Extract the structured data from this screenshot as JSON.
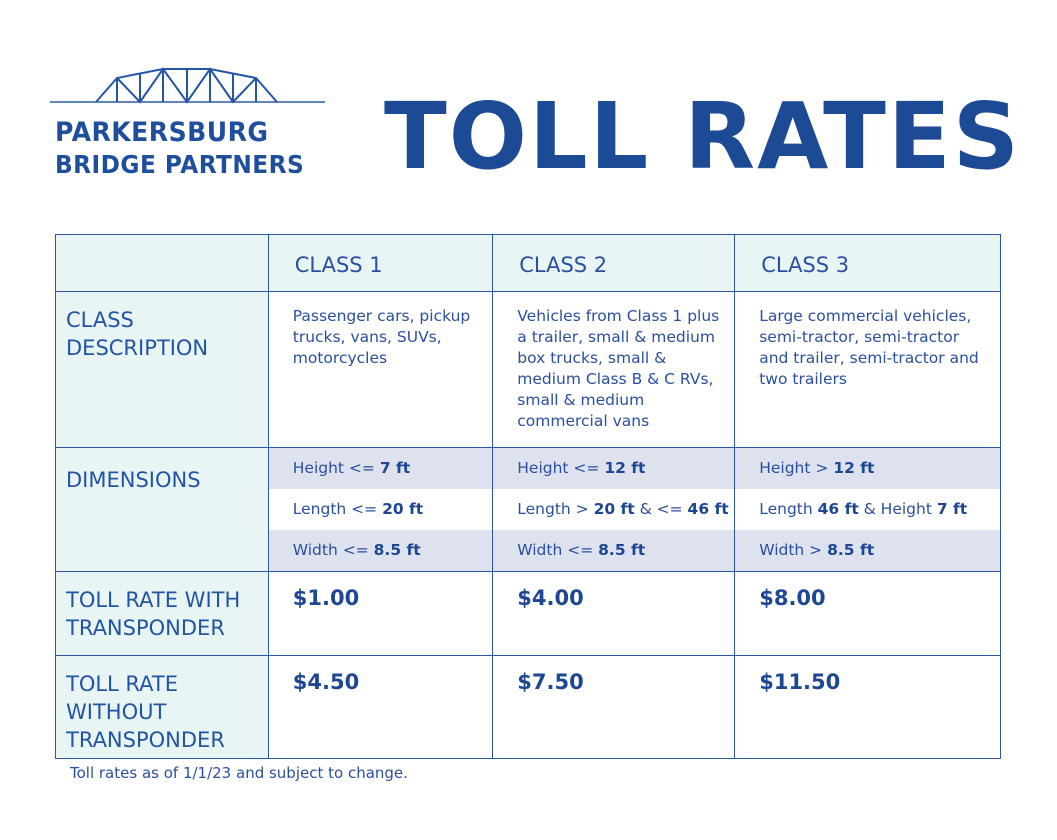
{
  "logo": {
    "line1": "PARKERSBURG",
    "line2": "BRIDGE PARTNERS"
  },
  "title": "TOLL RATES",
  "table": {
    "headers": [
      "CLASS 1",
      "CLASS 2",
      "CLASS 3"
    ],
    "rows": {
      "description": {
        "label": "CLASS DESCRIPTION",
        "values": [
          "Passenger cars, pickup trucks, vans, SUVs, motorcycles",
          "Vehicles from Class 1 plus a trailer, small & medium box trucks, small & medium Class B & C RVs, small & medium commercial vans",
          "Large commercial vehicles, semi-tractor, semi-tractor and trailer, semi-tractor and two trailers"
        ]
      },
      "dimensions": {
        "label": "DIMENSIONS",
        "values": [
          [
            {
              "pre": "Height <= ",
              "bold": "7 ft"
            },
            {
              "pre": "Length <= ",
              "bold": "20 ft"
            },
            {
              "pre": "Width <= ",
              "bold": "8.5 ft"
            }
          ],
          [
            {
              "pre": "Height <= ",
              "bold": "12 ft"
            },
            {
              "pre": "Length > ",
              "bold": "20 ft",
              "mid": " & <= ",
              "bold2": "46 ft"
            },
            {
              "pre": "Width <= ",
              "bold": "8.5 ft"
            }
          ],
          [
            {
              "pre": "Height > ",
              "bold": "12 ft"
            },
            {
              "pre": "Length ",
              "bold": "46 ft",
              "mid": " & Height ",
              "bold2": "7 ft"
            },
            {
              "pre": "Width > ",
              "bold": "8.5 ft"
            }
          ]
        ]
      },
      "with_transponder": {
        "label": "TOLL RATE WITH TRANSPONDER",
        "values": [
          "$1.00",
          "$4.00",
          "$8.00"
        ]
      },
      "without_transponder": {
        "label": "TOLL RATE WITHOUT TRANSPONDER",
        "values": [
          "$4.50",
          "$7.50",
          "$11.50"
        ]
      }
    }
  },
  "footnote": "Toll rates as of 1/1/23 and subject to change.",
  "colors": {
    "brand": "#1d4a95",
    "border": "#2d56a6",
    "header_bg": "#e9f5f5",
    "shade_bg": "#dde2ee"
  }
}
